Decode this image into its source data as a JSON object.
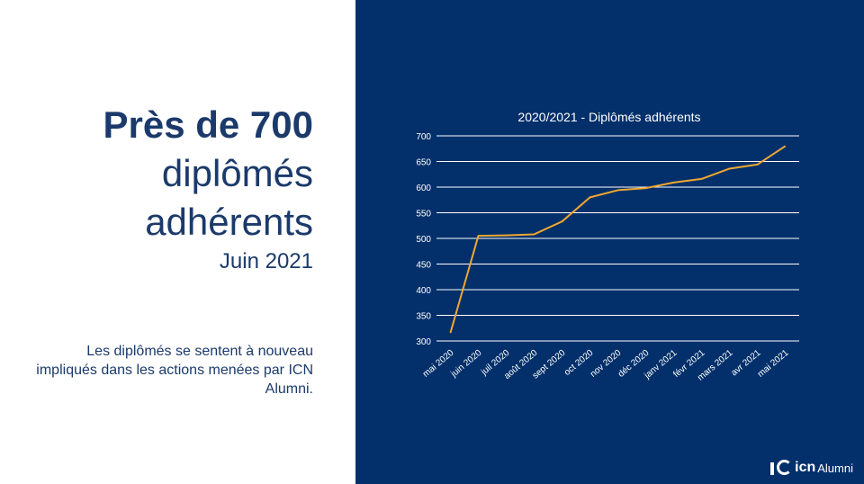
{
  "headline": {
    "bold": "Près de 700",
    "line2": "diplômés",
    "line3": "adhérents",
    "sub": "Juin 2021"
  },
  "description": "Les diplômés se sentent à nouveau impliqués dans les actions menées par ICN Alumni.",
  "colors": {
    "panel": "#03306b",
    "headline": "#1b3a6b",
    "line": "#f0a830",
    "grid": "#ffffff"
  },
  "logo": {
    "bold": "icn",
    "light": "Alumni"
  },
  "chart_data": {
    "type": "line",
    "title": "2020/2021 - Diplômés adhérents",
    "xlabel": "",
    "ylabel": "",
    "ylim": [
      300,
      700
    ],
    "yticks": [
      300,
      350,
      400,
      450,
      500,
      550,
      600,
      650,
      700
    ],
    "grid": true,
    "categories": [
      "mai 2020",
      "juin 2020",
      "juil 2020",
      "août 2020",
      "sept 2020",
      "oct 2020",
      "nov 2020",
      "déc 2020",
      "janv 2021",
      "févr 2021",
      "mars 2021",
      "avr 2021",
      "mai 2021"
    ],
    "series": [
      {
        "values": [
          316,
          505,
          506,
          508,
          533,
          580,
          594,
          598,
          609,
          616,
          636,
          644,
          680
        ]
      }
    ]
  }
}
